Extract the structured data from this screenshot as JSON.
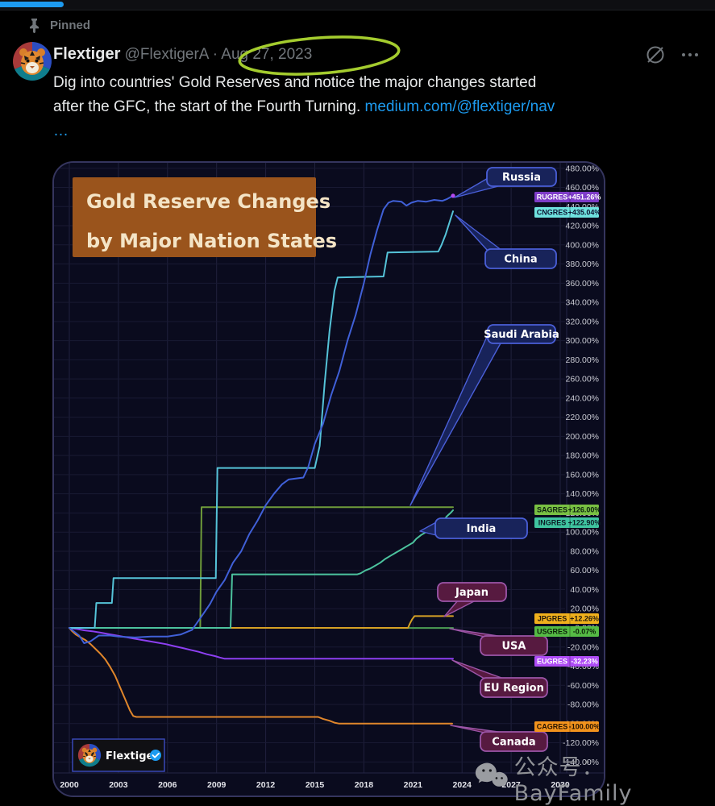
{
  "top_bar": {
    "loading_bar_color": "#1d9bf0"
  },
  "tweet": {
    "pinned_label": "Pinned",
    "author": {
      "name": "Flextiger",
      "handle": "@FlextigerA",
      "separator": "·",
      "date": "Aug 27, 2023"
    },
    "annotation": {
      "shape": "hand-drawn-ellipse",
      "color": "#a4cc2e"
    },
    "body": {
      "line1": "Dig into countries' Gold Reserves and notice the major changes started",
      "line2": "after the GFC, the start of the Fourth Turning. ",
      "link": "medium.com/@flextiger/nav",
      "truncation": "…"
    },
    "icons": {
      "grok": "slash-circle",
      "more": "ellipsis"
    }
  },
  "watermarks": {
    "wechat_label": "公众号：BayFamily",
    "chart_watermark_name": "Flextiger",
    "chart_watermark_verified": true
  },
  "chart_data": {
    "type": "line",
    "title_lines": [
      "Gold Reserve Changes",
      "by Major Nation States"
    ],
    "title_bg": "#9a541c",
    "title_fg": "#f4e4c6",
    "xlabel": "",
    "ylabel": "",
    "x_ticks": [
      2000,
      2003,
      2006,
      2009,
      2012,
      2015,
      2018,
      2021,
      2024,
      2027,
      2030
    ],
    "y_tick_min": -140,
    "y_tick_max": 480,
    "y_tick_step": 20,
    "ylim": [
      -150,
      487
    ],
    "grid": true,
    "legend_position": "right-badges",
    "series": [
      {
        "name": "usa",
        "country_label": "USA",
        "ticker": "USGRES",
        "change_label": "-0.07%",
        "line_color": "#4d9e54",
        "badge_bg": "#55bb45",
        "badge_fg": "#0b2008",
        "bubble_style": "plum",
        "points": [
          [
            2000,
            0
          ],
          [
            2023.45,
            -0.07
          ]
        ]
      },
      {
        "name": "japan",
        "country_label": "Japan",
        "ticker": "JPGRES",
        "change_label": "+12.26%",
        "line_color": "#d6a125",
        "badge_bg": "#f0b01c",
        "badge_fg": "#23180a",
        "bubble_style": "plum",
        "points": [
          [
            2000,
            0
          ],
          [
            2020.7,
            0
          ],
          [
            2020.8,
            4
          ],
          [
            2020.95,
            9
          ],
          [
            2021.1,
            12.26
          ],
          [
            2023.45,
            12.26
          ]
        ]
      },
      {
        "name": "eu",
        "country_label": "EU Region",
        "ticker": "EUGRES",
        "change_label": "-32.23%",
        "line_color": "#8d3ff2",
        "badge_bg": "#ae4cf5",
        "badge_fg": "#ffffff",
        "bubble_style": "plum",
        "points": [
          [
            2000,
            0
          ],
          [
            2000.4,
            -1
          ],
          [
            2000.9,
            -2.5
          ],
          [
            2001.4,
            -3.5
          ],
          [
            2001.9,
            -5
          ],
          [
            2002.4,
            -6.5
          ],
          [
            2002.9,
            -8
          ],
          [
            2003.4,
            -9.5
          ],
          [
            2003.9,
            -11
          ],
          [
            2004.4,
            -12.5
          ],
          [
            2004.9,
            -14
          ],
          [
            2005.4,
            -15.5
          ],
          [
            2005.9,
            -17
          ],
          [
            2006.4,
            -19
          ],
          [
            2006.9,
            -21
          ],
          [
            2007.4,
            -23
          ],
          [
            2007.9,
            -25
          ],
          [
            2008.4,
            -27.5
          ],
          [
            2008.9,
            -29.5
          ],
          [
            2009.2,
            -31
          ],
          [
            2009.5,
            -32.23
          ],
          [
            2023.45,
            -32.23
          ]
        ]
      },
      {
        "name": "canada",
        "country_label": "Canada",
        "ticker": "CAGRES",
        "change_label": "-100.00%",
        "line_color": "#e0862b",
        "badge_bg": "#f2931d",
        "badge_fg": "#261300",
        "bubble_style": "plum",
        "points": [
          [
            2000,
            0
          ],
          [
            2000.15,
            -3
          ],
          [
            2000.4,
            -7
          ],
          [
            2000.7,
            -10
          ],
          [
            2001,
            -13
          ],
          [
            2001.3,
            -17
          ],
          [
            2001.6,
            -22
          ],
          [
            2001.9,
            -27
          ],
          [
            2002.2,
            -33
          ],
          [
            2002.5,
            -41
          ],
          [
            2002.8,
            -50
          ],
          [
            2003.1,
            -62
          ],
          [
            2003.4,
            -74
          ],
          [
            2003.7,
            -86
          ],
          [
            2003.9,
            -92
          ],
          [
            2004.1,
            -93
          ],
          [
            2015.2,
            -93
          ],
          [
            2015.5,
            -95
          ],
          [
            2015.9,
            -97
          ],
          [
            2016.2,
            -99
          ],
          [
            2016.5,
            -100
          ],
          [
            2023.4,
            -100
          ]
        ]
      },
      {
        "name": "saudi",
        "country_label": "Saudi Arabia",
        "ticker": "SAGRES",
        "change_label": "+126.00%",
        "line_color": "#6e9b3a",
        "badge_bg": "#79c043",
        "badge_fg": "#0c2010",
        "bubble_style": "blue",
        "points": [
          [
            2000,
            0
          ],
          [
            2008.0,
            0
          ],
          [
            2008.08,
            126
          ],
          [
            2023.45,
            126
          ]
        ]
      },
      {
        "name": "india",
        "country_label": "India",
        "ticker": "INGRES",
        "change_label": "+122.90%",
        "line_color": "#4cc39e",
        "badge_bg": "#3fc4a0",
        "badge_fg": "#0c1e28",
        "bubble_style": "blue",
        "points": [
          [
            2000,
            0
          ],
          [
            2009.85,
            0
          ],
          [
            2009.95,
            55.9
          ],
          [
            2017.6,
            55.9
          ],
          [
            2017.8,
            57
          ],
          [
            2018.1,
            60
          ],
          [
            2018.4,
            62
          ],
          [
            2018.7,
            65
          ],
          [
            2019,
            68
          ],
          [
            2019.3,
            72
          ],
          [
            2019.7,
            76
          ],
          [
            2020,
            79
          ],
          [
            2020.3,
            82
          ],
          [
            2020.7,
            86
          ],
          [
            2021,
            89
          ],
          [
            2021.2,
            93
          ],
          [
            2021.5,
            97
          ],
          [
            2021.8,
            100
          ],
          [
            2022.1,
            104
          ],
          [
            2022.4,
            107
          ],
          [
            2022.7,
            110
          ],
          [
            2022.9,
            113
          ],
          [
            2023.1,
            117
          ],
          [
            2023.3,
            120
          ],
          [
            2023.45,
            122.9
          ]
        ]
      },
      {
        "name": "china",
        "country_label": "China",
        "ticker": "CNGRES",
        "change_label": "+435.04%",
        "line_color": "#55c3d8",
        "badge_bg": "#6fe2df",
        "badge_fg": "#0c1230",
        "bubble_style": "blue",
        "points": [
          [
            2000,
            0
          ],
          [
            2001.55,
            0
          ],
          [
            2001.65,
            26
          ],
          [
            2002.6,
            26
          ],
          [
            2002.7,
            52
          ],
          [
            2008.95,
            52
          ],
          [
            2009.05,
            167
          ],
          [
            2015.0,
            167
          ],
          [
            2015.3,
            190
          ],
          [
            2015.6,
            255
          ],
          [
            2015.9,
            310
          ],
          [
            2016.2,
            352
          ],
          [
            2016.4,
            366
          ],
          [
            2019.2,
            367
          ],
          [
            2019.45,
            392
          ],
          [
            2022.55,
            393
          ],
          [
            2022.75,
            400
          ],
          [
            2023.0,
            411
          ],
          [
            2023.45,
            435.04
          ]
        ]
      },
      {
        "name": "russia",
        "country_label": "Russia",
        "ticker": "RUGRES",
        "change_label": "+451.26%",
        "line_color": "#4060d8",
        "badge_bg": "#7e3cc8",
        "badge_fg": "#ffffff",
        "bubble_style": "blue",
        "end_dot_color": "#b44af0",
        "points": [
          [
            2000,
            0
          ],
          [
            2000.6,
            -8
          ],
          [
            2000.9,
            -16
          ],
          [
            2001.3,
            -14
          ],
          [
            2001.8,
            -8
          ],
          [
            2002.5,
            -8
          ],
          [
            2003,
            -9
          ],
          [
            2004,
            -10
          ],
          [
            2005,
            -9
          ],
          [
            2006,
            -9
          ],
          [
            2006.8,
            -7
          ],
          [
            2007.5,
            -2
          ],
          [
            2008,
            10
          ],
          [
            2008.6,
            25
          ],
          [
            2009,
            38
          ],
          [
            2009.5,
            50
          ],
          [
            2010,
            68
          ],
          [
            2010.5,
            80
          ],
          [
            2011,
            98
          ],
          [
            2011.5,
            112
          ],
          [
            2012,
            128
          ],
          [
            2012.5,
            140
          ],
          [
            2013,
            150
          ],
          [
            2013.4,
            155
          ],
          [
            2014.3,
            157
          ],
          [
            2014.6,
            168
          ],
          [
            2015,
            192
          ],
          [
            2015.5,
            213
          ],
          [
            2016,
            243
          ],
          [
            2016.5,
            268
          ],
          [
            2017,
            300
          ],
          [
            2017.5,
            327
          ],
          [
            2018,
            360
          ],
          [
            2018.4,
            390
          ],
          [
            2018.8,
            415
          ],
          [
            2019.2,
            437
          ],
          [
            2019.5,
            444
          ],
          [
            2019.8,
            446
          ],
          [
            2020.3,
            445
          ],
          [
            2020.6,
            441
          ],
          [
            2020.9,
            444
          ],
          [
            2021.3,
            446
          ],
          [
            2021.8,
            445
          ],
          [
            2022.3,
            447
          ],
          [
            2022.8,
            446
          ],
          [
            2023.1,
            448
          ],
          [
            2023.45,
            451.26
          ]
        ]
      }
    ]
  }
}
